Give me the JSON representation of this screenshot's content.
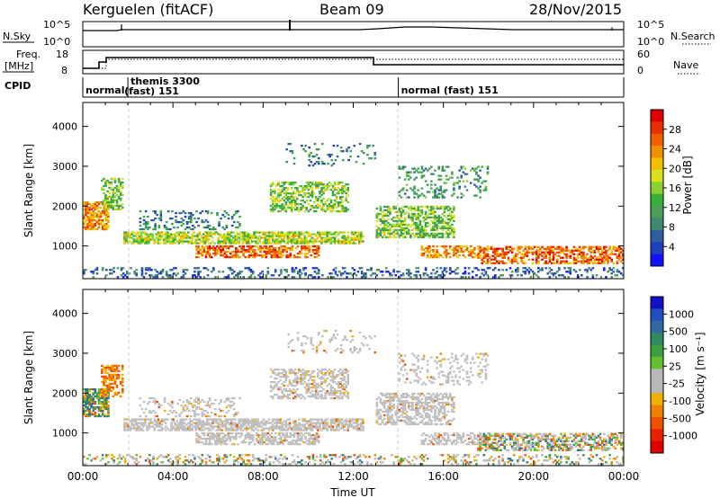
{
  "header": {
    "station": "Kerguelen (fitACF)",
    "beam": "Beam 09",
    "date": "28/Nov/2015"
  },
  "strip": {
    "nsky_label": "N.Sky",
    "nsky_ticks": [
      "10^5",
      "10^0"
    ],
    "nsearch_label": "N.Search",
    "nsearch_ticks": [
      "10^5",
      "10^0"
    ],
    "freq_label_line1": "Freq.",
    "freq_label_line2": "[MHz]",
    "freq_ticks": [
      "18",
      "8"
    ],
    "nave_label": "Nave",
    "nave_ticks": [
      "60",
      "0"
    ],
    "cpid_label": "CPID",
    "cpid_segments": [
      {
        "start": 0,
        "end": 2,
        "lines": [
          "normal"
        ]
      },
      {
        "start": 2,
        "end": 14,
        "lines": [
          "themis 3300",
          "(fast) 151"
        ]
      },
      {
        "start": 14,
        "end": 24,
        "lines": [
          "normal (fast) 151"
        ]
      }
    ]
  },
  "chart_data": [
    {
      "type": "heatmap",
      "name": "power",
      "ylabel": "Slant Range [km]",
      "yticks": [
        "1000",
        "2000",
        "3000",
        "4000"
      ],
      "ylim": [
        180,
        4600
      ],
      "xlim": [
        0,
        24
      ],
      "colorbar_label": "Power [dB]",
      "colorbar_ticks": [
        "4",
        "8",
        "12",
        "16",
        "20",
        "24",
        "28"
      ],
      "colorbar_colors": [
        "#1010ff",
        "#2040c0",
        "#2e5ea0",
        "#3f8a70",
        "#4a9e58",
        "#38b038",
        "#8cd030",
        "#d8e020",
        "#f2c000",
        "#f09000",
        "#f06000",
        "#e83000",
        "#e00000"
      ],
      "colorbar_range": [
        0,
        30
      ]
    },
    {
      "type": "heatmap",
      "name": "velocity",
      "ylabel": "Slant Range [km]",
      "yticks": [
        "1000",
        "2000",
        "3000",
        "4000"
      ],
      "ylim": [
        180,
        4600
      ],
      "xlim": [
        0,
        24
      ],
      "xlabel": "Time UT",
      "xticks": [
        "00:00",
        "04:00",
        "08:00",
        "12:00",
        "16:00",
        "20:00",
        "00:00"
      ],
      "colorbar_label": "Velocity [m s⁻¹]",
      "colorbar_ticks": [
        "1000",
        "500",
        "100",
        "25",
        "-25",
        "-100",
        "-500",
        "-1000"
      ],
      "colorbar_colors": [
        "#1010c8",
        "#2050c0",
        "#306aa0",
        "#2e8a60",
        "#3aa040",
        "#60c030",
        "#b8b8b8",
        "#b8b8b8",
        "#f0b000",
        "#f08000",
        "#f05000",
        "#e82000",
        "#e00000"
      ]
    }
  ]
}
